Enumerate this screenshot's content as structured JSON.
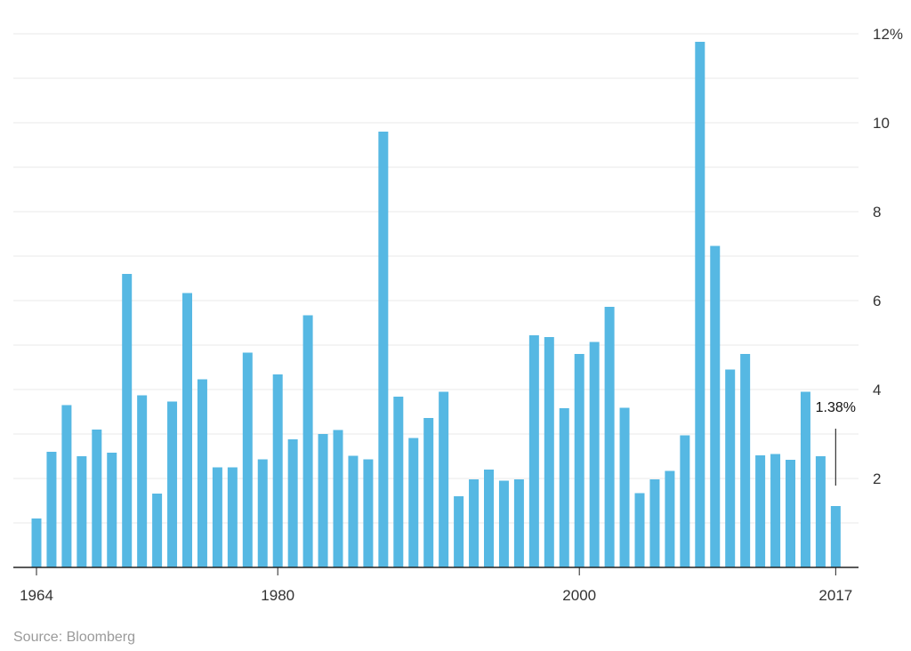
{
  "chart_data": {
    "type": "bar",
    "title": "",
    "xlabel": "",
    "ylabel": "",
    "ylim": [
      0,
      12.5
    ],
    "y_ticks": [
      {
        "value": 2,
        "label": "2"
      },
      {
        "value": 4,
        "label": "4"
      },
      {
        "value": 6,
        "label": "6"
      },
      {
        "value": 8,
        "label": "8"
      },
      {
        "value": 10,
        "label": "10"
      },
      {
        "value": 12,
        "label": "12%"
      }
    ],
    "x_ticks": [
      {
        "value": 1964,
        "label": "1964"
      },
      {
        "value": 1980,
        "label": "1980"
      },
      {
        "value": 2000,
        "label": "2000"
      },
      {
        "value": 2017,
        "label": "2017"
      }
    ],
    "grid": true,
    "color": "#56b8e3",
    "x": [
      1964,
      1965,
      1966,
      1967,
      1968,
      1969,
      1970,
      1971,
      1972,
      1973,
      1974,
      1975,
      1976,
      1977,
      1978,
      1979,
      1980,
      1981,
      1982,
      1983,
      1984,
      1985,
      1986,
      1987,
      1988,
      1989,
      1990,
      1991,
      1992,
      1993,
      1994,
      1995,
      1996,
      1997,
      1998,
      1999,
      2000,
      2001,
      2002,
      2003,
      2004,
      2005,
      2006,
      2007,
      2008,
      2009,
      2010,
      2011,
      2012,
      2013,
      2014,
      2015,
      2016,
      2017
    ],
    "values": [
      1.1,
      2.6,
      3.65,
      2.5,
      3.1,
      2.58,
      6.6,
      3.87,
      1.66,
      3.73,
      6.17,
      4.23,
      2.25,
      2.25,
      4.83,
      2.43,
      4.34,
      2.88,
      5.67,
      3.0,
      3.09,
      2.51,
      2.43,
      9.8,
      3.84,
      2.91,
      3.36,
      3.95,
      1.6,
      1.98,
      2.2,
      1.95,
      1.98,
      5.22,
      5.18,
      3.58,
      4.8,
      5.07,
      5.86,
      3.59,
      1.67,
      1.98,
      2.17,
      2.97,
      11.82,
      7.23,
      4.45,
      4.8,
      2.52,
      2.55,
      2.42,
      3.95,
      2.5,
      1.38
    ],
    "annotation": {
      "label": "1.38%",
      "x": 2017
    }
  },
  "source": "Source: Bloomberg"
}
